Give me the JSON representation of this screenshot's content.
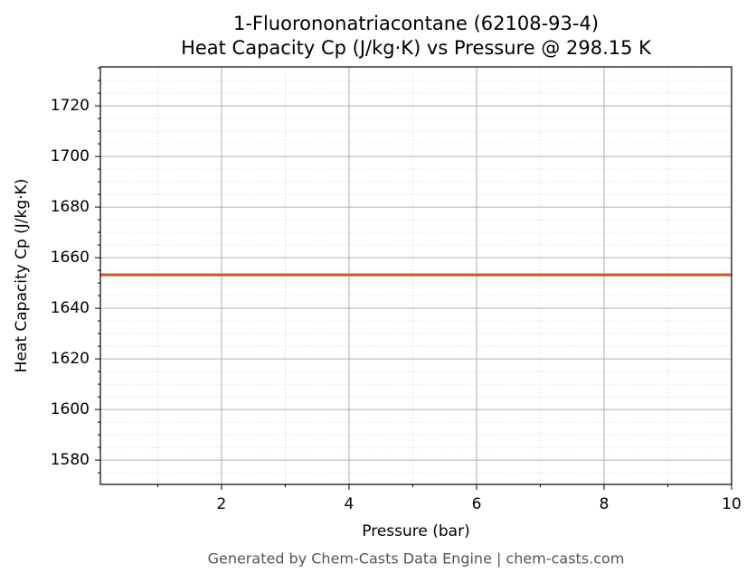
{
  "chart_data": {
    "type": "line",
    "title": "1-Fluorononatriacontane (62108-93-4)",
    "subtitle": "Heat Capacity Cp (J/kg·K) vs Pressure @ 298.15 K",
    "x_label": "Pressure (bar)",
    "y_label": "Heat Capacity Cp (J/kg·K)",
    "caption": "Generated by Chem-Casts Data Engine | chem-casts.com",
    "x": [
      0.1,
      10
    ],
    "series": [
      {
        "name": "Cp",
        "color": "#c8552b",
        "values": [
          1653.2,
          1653.2
        ]
      }
    ],
    "xlim": [
      0.1,
      10
    ],
    "ylim": [
      1570.4,
      1735.4
    ],
    "xticks": [
      2,
      4,
      6,
      8,
      10
    ],
    "yticks": [
      1580,
      1600,
      1620,
      1640,
      1660,
      1680,
      1700,
      1720
    ],
    "xminorticks": [
      1,
      3,
      5,
      7,
      9
    ],
    "yminorticks": [
      1575,
      1585,
      1590,
      1595,
      1605,
      1610,
      1615,
      1625,
      1630,
      1635,
      1645,
      1650,
      1655,
      1665,
      1670,
      1675,
      1685,
      1690,
      1695,
      1705,
      1710,
      1715,
      1725,
      1730,
      1735
    ],
    "grid": true
  }
}
